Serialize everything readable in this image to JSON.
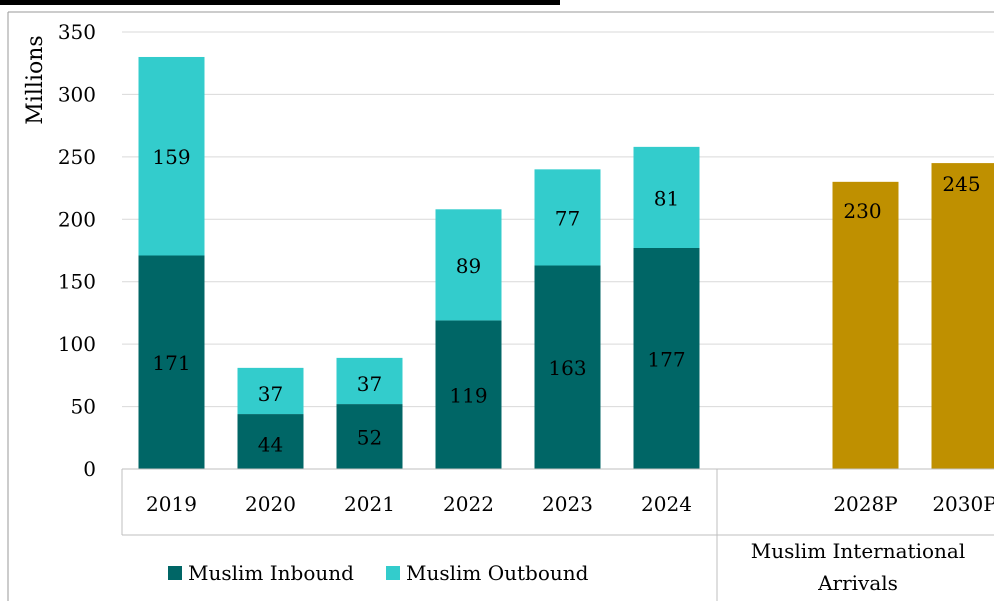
{
  "chart_data": {
    "type": "bar",
    "ylabel": "Millions",
    "ylim": [
      0,
      350
    ],
    "yticks": [
      "0",
      "50",
      "100",
      "150",
      "200",
      "250",
      "300",
      "350"
    ],
    "grid": true,
    "groups": [
      {
        "label": "",
        "categories": [
          "2019",
          "2020",
          "2021",
          "2022",
          "2023",
          "2024"
        ],
        "stacked": true,
        "series": [
          {
            "name": "Muslim Inbound",
            "color": "#006666",
            "values": [
              171,
              44,
              52,
              119,
              163,
              177
            ]
          },
          {
            "name": "Muslim Outbound",
            "color": "#33CCCC",
            "values": [
              159,
              37,
              37,
              89,
              77,
              81
            ]
          }
        ]
      },
      {
        "label": "Muslim International Arrivals",
        "label_lines": [
          "Muslim International",
          "Arrivals"
        ],
        "categories": [
          "2028P",
          "2030P"
        ],
        "stacked": false,
        "series": [
          {
            "name": "Muslim International Arrivals",
            "color": "#BF9000",
            "values": [
              230,
              245
            ]
          }
        ]
      }
    ],
    "legend": {
      "position": "bottom-left",
      "entries": [
        {
          "name": "Muslim Inbound",
          "color": "#006666"
        },
        {
          "name": "Muslim Outbound",
          "color": "#33CCCC"
        }
      ]
    }
  }
}
